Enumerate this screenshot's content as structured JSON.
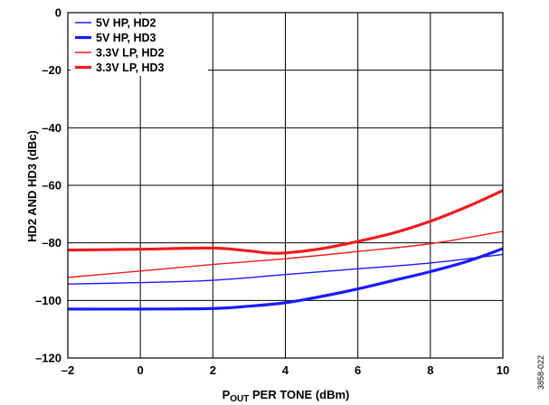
{
  "chart_data": {
    "type": "line",
    "xlabel_main": "P",
    "xlabel_sub": "OUT",
    "xlabel_rest": " PER TONE (dBm)",
    "ylabel": "HD2 AND HD3 (dBc)",
    "xlim": [
      -2,
      10
    ],
    "ylim": [
      -120,
      0
    ],
    "xticks": [
      -2,
      0,
      2,
      4,
      6,
      8,
      10
    ],
    "xtick_labels": [
      "–2",
      "0",
      "2",
      "4",
      "6",
      "8",
      "10"
    ],
    "yticks": [
      0,
      -20,
      -40,
      -60,
      -80,
      -100,
      -120
    ],
    "ytick_labels": [
      "0",
      "–20",
      "–40",
      "–60",
      "–80",
      "–100",
      "–120"
    ],
    "grid": true,
    "legend_position": "top-left",
    "figure_id": "3858-022",
    "series": [
      {
        "name": "5V HP, HD2",
        "color": "#1a1aff",
        "weight": "thin",
        "x": [
          -2,
          0,
          2,
          4,
          6,
          8,
          10
        ],
        "y": [
          -94.3,
          -93.8,
          -93,
          -91,
          -89,
          -87,
          -84
        ]
      },
      {
        "name": "5V HP, HD3",
        "color": "#1a1aff",
        "weight": "thick",
        "x": [
          -2,
          0,
          2,
          3,
          4,
          5,
          6,
          7,
          8,
          9,
          10
        ],
        "y": [
          -103,
          -103,
          -102.8,
          -102,
          -100.8,
          -98.6,
          -96,
          -93,
          -90,
          -86.5,
          -82
        ]
      },
      {
        "name": "3.3V LP, HD2",
        "color": "#ee1c1c",
        "weight": "thin",
        "x": [
          -2,
          0,
          2,
          4,
          6,
          8,
          10
        ],
        "y": [
          -92,
          -89.8,
          -87.5,
          -85.5,
          -83,
          -80.3,
          -76
        ]
      },
      {
        "name": "3.3V LP, HD3",
        "color": "#ee1c1c",
        "weight": "thick",
        "x": [
          -2,
          0,
          2,
          3,
          3.5,
          4,
          5,
          6,
          7,
          8,
          9,
          10
        ],
        "y": [
          -82.5,
          -82.2,
          -81.8,
          -82.8,
          -83.5,
          -83.5,
          -82,
          -79.5,
          -76.5,
          -72.5,
          -67.5,
          -61.8
        ]
      }
    ]
  }
}
